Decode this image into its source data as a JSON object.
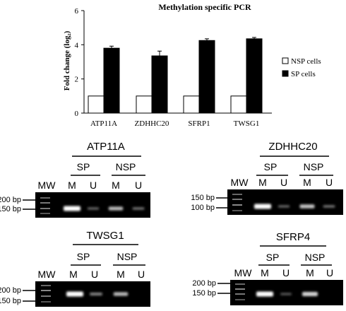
{
  "chart_data": {
    "type": "bar",
    "title": "Methylation specific PCR",
    "ylabel": "Fold change (log₂)",
    "xlabel": "",
    "categories": [
      "ATP11A",
      "ZDHHC20",
      "SFRP1",
      "TWSG1"
    ],
    "ylim": [
      0,
      6
    ],
    "yticks": [
      "0",
      "2",
      "4",
      "6"
    ],
    "series": [
      {
        "name": "NSP cells",
        "color": "#ffffff",
        "values": [
          1,
          1,
          1,
          1
        ]
      },
      {
        "name": "SP cells",
        "color": "#000000",
        "values": [
          3.8,
          3.35,
          4.25,
          4.35
        ],
        "errors": [
          0.12,
          0.28,
          0.1,
          0.08
        ]
      }
    ],
    "legend_position": "right",
    "grid": false
  },
  "gels": [
    {
      "title": "ATP11A",
      "mw_label": "MW",
      "groups": [
        "SP",
        "NSP"
      ],
      "lanes": [
        "M",
        "U",
        "M",
        "U"
      ],
      "markers": [
        "200 bp",
        "150 bp"
      ],
      "lane_intensity": [
        1.0,
        0.25,
        0.65,
        0.3
      ]
    },
    {
      "title": "ZDHHC20",
      "mw_label": "MW",
      "groups": [
        "SP",
        "NSP"
      ],
      "lanes": [
        "M",
        "U",
        "M",
        "U"
      ],
      "markers": [
        "150 bp",
        "100 bp"
      ],
      "lane_intensity": [
        1.0,
        0.25,
        0.7,
        0.3
      ]
    },
    {
      "title": "TWSG1",
      "mw_label": "MW",
      "groups": [
        "SP",
        "NSP"
      ],
      "lanes": [
        "M",
        "U",
        "M",
        "U"
      ],
      "markers": [
        "200 bp",
        "150 bp"
      ],
      "lane_intensity": [
        1.0,
        0.4,
        0.65,
        0.0
      ]
    },
    {
      "title": "SFRP4",
      "mw_label": "MW",
      "groups": [
        "SP",
        "NSP"
      ],
      "lanes": [
        "M",
        "U",
        "M",
        "U"
      ],
      "markers": [
        "200 bp",
        "150 bp"
      ],
      "lane_intensity": [
        1.0,
        0.2,
        0.8,
        0.0
      ]
    }
  ]
}
